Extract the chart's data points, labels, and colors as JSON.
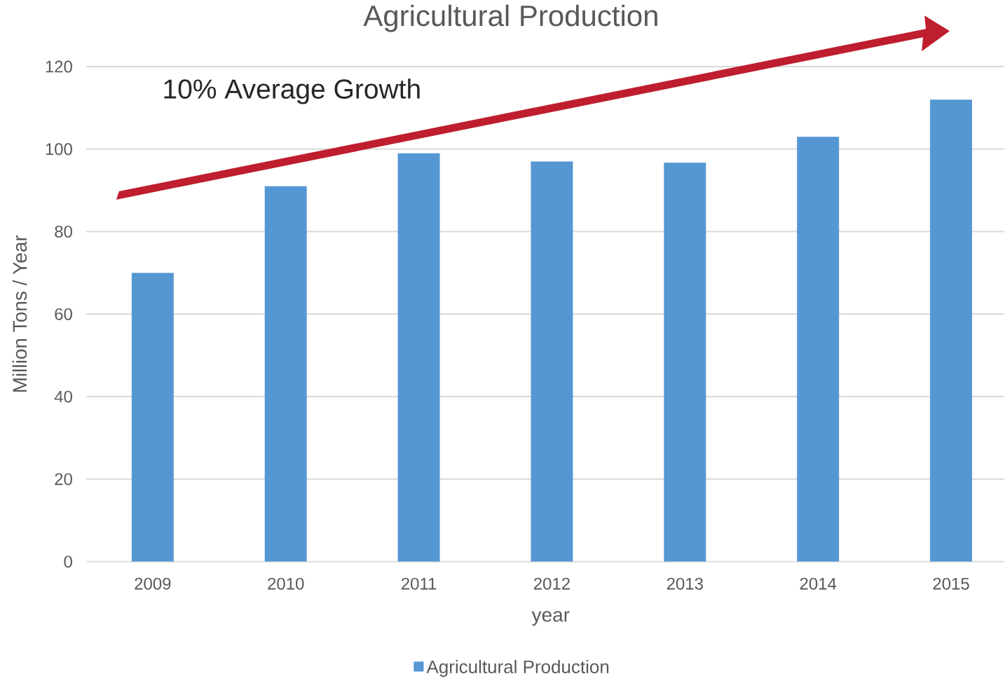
{
  "chart_data": {
    "type": "bar",
    "title": "Agricultural Production",
    "xlabel": "year",
    "ylabel": "Million Tons / Year",
    "categories": [
      "2009",
      "2010",
      "2011",
      "2012",
      "2013",
      "2014",
      "2015"
    ],
    "series": [
      {
        "name": "Agricultural Production",
        "color": "#5597d3",
        "values": [
          70,
          91,
          99,
          97,
          96.7,
          103,
          112
        ]
      }
    ],
    "ylim": [
      0,
      120
    ],
    "yticks": [
      0,
      20,
      40,
      60,
      80,
      100,
      120
    ],
    "grid": "y",
    "legend": "bottom",
    "annotations": [
      "10% Average Growth"
    ]
  }
}
